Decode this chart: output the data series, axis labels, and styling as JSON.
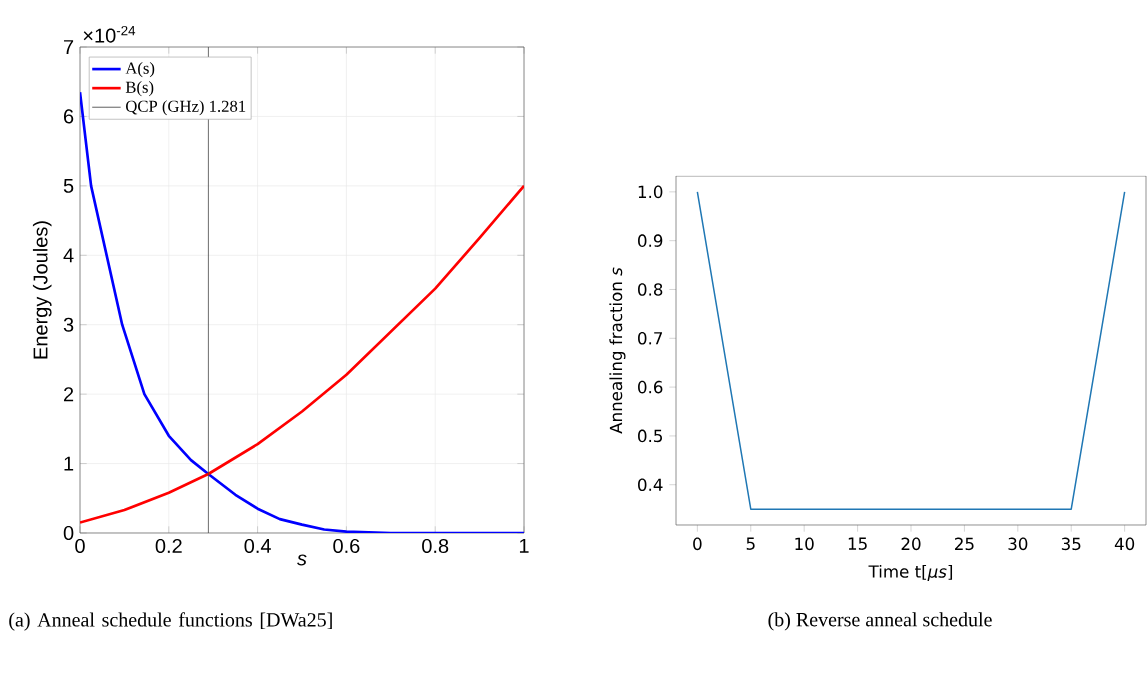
{
  "chart_data": [
    {
      "type": "line",
      "xlabel": "s",
      "ylabel": "Energy (Joules)",
      "xlim": [
        0,
        1
      ],
      "ylim": [
        0,
        7
      ],
      "xticks": [
        0,
        0.2,
        0.4,
        0.6,
        0.8,
        1
      ],
      "yticks": [
        0,
        1,
        2,
        3,
        4,
        5,
        6,
        7
      ],
      "grid": true,
      "legend": "top left",
      "annotations": [
        "×10$^{-24}$",
        "(a) Anneal schedule functions [DWa25]"
      ],
      "ref_lines": [
        {
          "axis": "x",
          "value": 0.289,
          "label": "QCP (GHz) 1.281",
          "color": "#404040"
        }
      ],
      "series": [
        {
          "name": "A(s)",
          "color": "#0000ff",
          "x": [
            0,
            0.025,
            0.06,
            0.095,
            0.145,
            0.2,
            0.25,
            0.289,
            0.35,
            0.4,
            0.45,
            0.5,
            0.55,
            0.6,
            0.7,
            0.8,
            0.9,
            1
          ],
          "values": [
            6.35,
            5.0,
            4.0,
            3.0,
            2.0,
            1.4,
            1.05,
            0.85,
            0.55,
            0.35,
            0.2,
            0.12,
            0.05,
            0.02,
            0,
            0,
            0,
            0
          ]
        },
        {
          "name": "B(s)",
          "color": "#ff0000",
          "x": [
            0,
            0.1,
            0.2,
            0.289,
            0.4,
            0.5,
            0.6,
            0.7,
            0.8,
            0.9,
            1
          ],
          "values": [
            0.15,
            0.33,
            0.58,
            0.85,
            1.28,
            1.75,
            2.28,
            2.9,
            3.52,
            4.25,
            5.0
          ]
        }
      ]
    },
    {
      "type": "line",
      "xlabel": "Time t[*μs*]",
      "ylabel": "Annealing fraction *s*",
      "xlim": [
        -2,
        42
      ],
      "ylim": [
        0.3175,
        1.0325
      ],
      "xticks": [
        0,
        5,
        10,
        15,
        20,
        25,
        30,
        35,
        40
      ],
      "yticks": [
        0.4,
        0.5,
        0.6,
        0.7,
        0.8,
        0.9,
        {
          "value": 1.0,
          "label": "1.0"
        }
      ],
      "annotations": [
        "(b) Reverse anneal schedule"
      ],
      "series": [
        {
          "color": "#1f77b4",
          "x": [
            0,
            5,
            35,
            40
          ],
          "values": [
            1.0,
            0.35,
            0.35,
            1.0
          ]
        }
      ]
    }
  ]
}
